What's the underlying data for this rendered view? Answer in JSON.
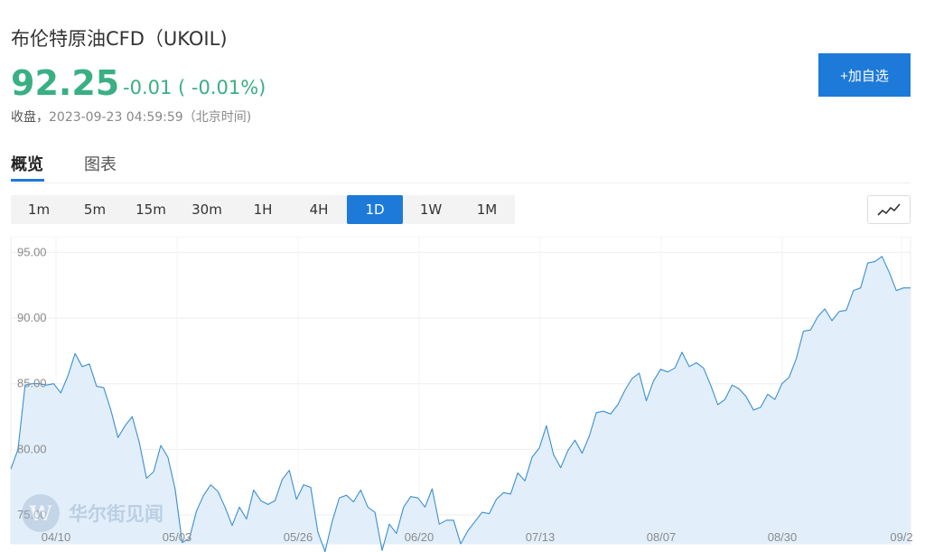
{
  "header": {
    "title": "布伦特原油CFD（UKOIL)",
    "price": "92.25",
    "change": "-0.01 ( -0.01%)",
    "status_label": "收盘，",
    "timestamp": "2023-09-23 04:59:59（北京时间)",
    "add_button": "+加自选"
  },
  "tabs": [
    {
      "label": "概览",
      "active": true
    },
    {
      "label": "图表",
      "active": false
    }
  ],
  "periods": [
    "1m",
    "5m",
    "15m",
    "30m",
    "1H",
    "4H",
    "1D",
    "1W",
    "1M"
  ],
  "active_period": "1D",
  "chart_type_icon": "line-chart-icon",
  "watermark": {
    "icon": "wallstreetcn-logo-icon",
    "text": "华尔街见闻"
  },
  "colors": {
    "accent": "#1e7ad8",
    "up_green": "#3aaf84",
    "line": "#3a8fd3",
    "area": "#e2effb"
  },
  "chart_data": {
    "type": "area",
    "title": "",
    "xlabel": "",
    "ylabel": "",
    "ylim": [
      72.8,
      96.2
    ],
    "y_ticks": [
      "95.00",
      "90.00",
      "85.00",
      "80.00",
      "75.00"
    ],
    "x_ticks": [
      "04/10",
      "05/03",
      "05/26",
      "06/20",
      "07/13",
      "08/07",
      "08/30",
      "09/2"
    ],
    "grid": true,
    "series": [
      {
        "values": [
          78.5,
          80.0,
          84.9,
          85.0,
          85.0,
          84.9,
          85.0,
          84.3,
          85.6,
          87.3,
          86.3,
          86.5,
          84.8,
          84.7,
          83.0,
          80.9,
          81.8,
          82.5,
          80.5,
          77.8,
          78.3,
          80.3,
          79.4,
          77.0,
          72.9,
          73.2,
          75.3,
          76.5,
          77.3,
          76.8,
          75.6,
          74.2,
          75.6,
          74.7,
          76.9,
          76.1,
          75.8,
          76.1,
          77.7,
          78.4,
          76.2,
          77.3,
          77.1,
          73.7,
          72.2,
          74.5,
          76.3,
          76.5,
          76.0,
          76.9,
          75.6,
          75.2,
          72.3,
          74.3,
          73.6,
          75.6,
          76.4,
          76.3,
          75.6,
          77.0,
          74.3,
          74.6,
          74.6,
          72.8,
          73.8,
          74.5,
          75.2,
          75.1,
          76.2,
          76.7,
          76.6,
          78.2,
          77.6,
          79.4,
          80.1,
          81.8,
          79.6,
          78.6,
          79.9,
          80.7,
          79.7,
          81.0,
          82.8,
          82.9,
          82.7,
          83.4,
          84.5,
          85.4,
          85.8,
          83.7,
          85.2,
          86.1,
          85.9,
          86.2,
          87.4,
          86.3,
          86.6,
          86.2,
          84.9,
          83.4,
          83.8,
          84.9,
          84.6,
          84.0,
          83.0,
          83.2,
          84.2,
          83.8,
          85.0,
          85.5,
          86.9,
          89.0,
          89.1,
          90.1,
          90.7,
          89.8,
          90.5,
          90.6,
          92.1,
          92.3,
          94.2,
          94.3,
          94.7,
          93.5,
          92.1,
          92.3,
          92.3
        ]
      }
    ]
  }
}
